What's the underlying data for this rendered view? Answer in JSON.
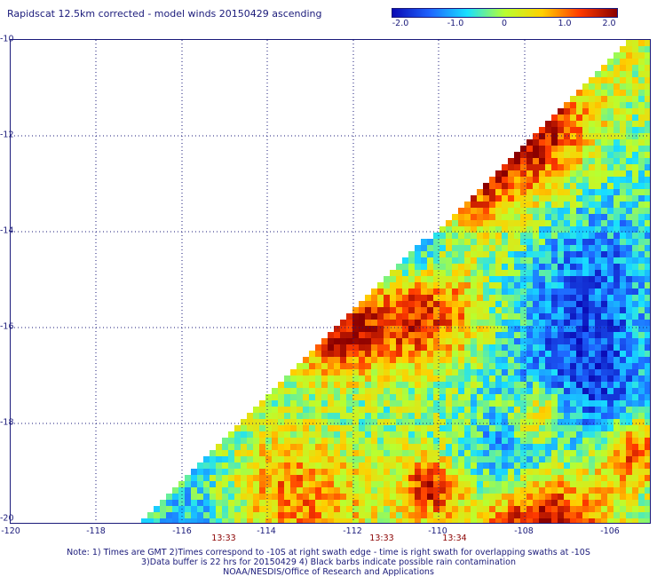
{
  "title": "Rapidscat 12.5km corrected - model winds 20150429 ascending",
  "colorbar": {
    "labels": [
      "-2.0",
      "-1.0",
      "0",
      "1.0",
      "2.0"
    ],
    "values": [
      -2.0,
      -1.0,
      0,
      1.0,
      2.0
    ],
    "colors": [
      "#0a0ab4",
      "#1e64ff",
      "#18e0ff",
      "#b8ff30",
      "#ffd000",
      "#ff3a00",
      "#8b0000"
    ]
  },
  "map": {
    "lon_range": [
      -120,
      -105.5
    ],
    "lat_range": [
      -20,
      -10
    ],
    "y_labels": [
      "-10",
      "-12",
      "-14",
      "-16",
      "-18",
      "-20"
    ],
    "x_labels": [
      "-120",
      "-118",
      "-116",
      "-114",
      "-112",
      "-110",
      "-108",
      "-106"
    ],
    "time_labels": [
      "13:33",
      "13:33",
      "13:34"
    ],
    "grid": "dotted, every 2 degrees"
  },
  "notes": {
    "line1": "Note: 1) Times are GMT 2)Times correspond to -10S at right swath edge - time is right swath for overlapping swaths at -10S",
    "line2": "3)Data buffer is 22 hrs for 20150429 4) Black barbs indicate possible rain contamination",
    "line3": "NOAA/NESDIS/Office of Research and Applications"
  }
}
